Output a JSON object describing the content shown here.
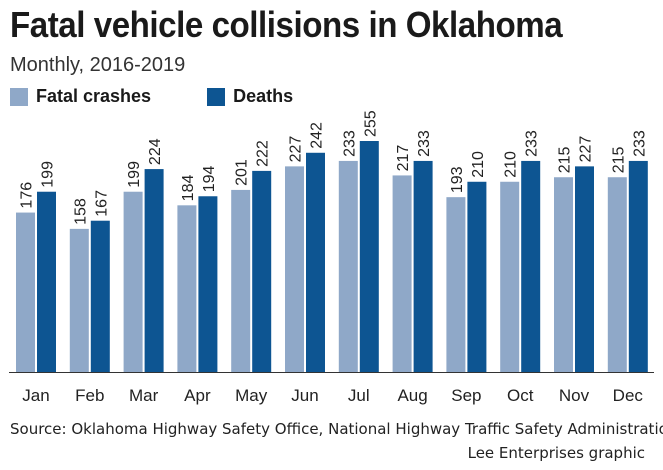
{
  "colors": {
    "fatal_crashes": "#8fa8c8",
    "deaths": "#0d5592",
    "axis": "#333333"
  },
  "chart_data": {
    "type": "bar",
    "title": "Fatal vehicle collisions in Oklahoma",
    "subtitle": "Monthly, 2016-2019",
    "categories": [
      "Jan",
      "Feb",
      "Mar",
      "Apr",
      "May",
      "Jun",
      "Jul",
      "Aug",
      "Sep",
      "Oct",
      "Nov",
      "Dec"
    ],
    "series": [
      {
        "name": "Fatal crashes",
        "values": [
          176,
          158,
          199,
          184,
          201,
          227,
          233,
          217,
          193,
          210,
          215,
          215
        ]
      },
      {
        "name": "Deaths",
        "values": [
          199,
          167,
          224,
          194,
          222,
          242,
          255,
          233,
          210,
          233,
          227,
          233
        ]
      }
    ],
    "ylim": [
      0,
      255
    ],
    "xlabel": "",
    "ylabel": "",
    "grid": false,
    "legend": "top-left",
    "source": "Source: Oklahoma Highway Safety Office, National Highway Traffic Safety Administration",
    "credit": "Lee Enterprises graphic"
  }
}
